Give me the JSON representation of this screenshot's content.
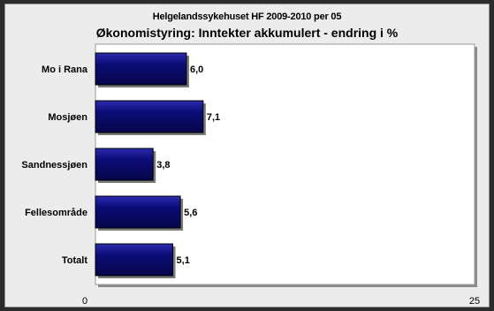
{
  "chart_data": {
    "type": "bar",
    "orientation": "horizontal",
    "title": "Helgelandssykehuset HF 2009-2010 per 05",
    "subtitle": "Økonomistyring: Inntekter akkumulert - endring i %",
    "categories": [
      "Mo i Rana",
      "Mosjøen",
      "Sandnessjøen",
      "Fellesområde",
      "Totalt"
    ],
    "values": [
      6.0,
      7.1,
      3.8,
      5.6,
      5.1
    ],
    "value_labels": [
      "6,0",
      "7,1",
      "3,8",
      "5,6",
      "5,1"
    ],
    "xlim": [
      0,
      25
    ],
    "x_tick_labels": [
      "0",
      "25"
    ],
    "grid": false,
    "legend": "none",
    "colors": {
      "bar_fill": "#0c0c78",
      "bar_top": "#1a1a9a",
      "shadow": "#7a7a7a",
      "plot_bg": "#ffffff",
      "frame_bg": "#ececec"
    }
  }
}
